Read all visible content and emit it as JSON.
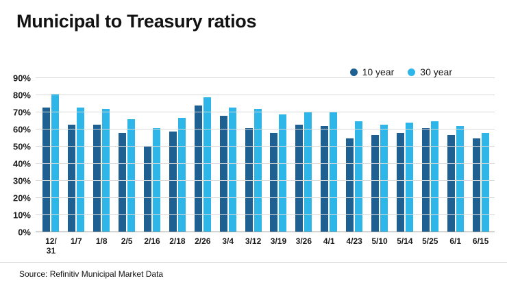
{
  "chart_data": {
    "type": "bar",
    "title": "Municipal to Treasury ratios",
    "source": "Source: Refinitiv Municipal Market Data",
    "categories": [
      "12/\n31",
      "1/7",
      "1/8",
      "2/5",
      "2/16",
      "2/18",
      "2/26",
      "3/4",
      "3/12",
      "3/19",
      "3/26",
      "4/1",
      "4/23",
      "5/10",
      "5/14",
      "5/25",
      "6/1",
      "6/15"
    ],
    "series": [
      {
        "name": "10 year",
        "color": "#1d6091",
        "values": [
          73,
          63,
          63,
          58,
          50,
          59,
          74,
          68,
          61,
          58,
          63,
          62,
          55,
          57,
          58,
          61,
          57,
          55
        ]
      },
      {
        "name": "30 year",
        "color": "#2eb6e8",
        "values": [
          81,
          73,
          72,
          66,
          61,
          67,
          79,
          73,
          72,
          69,
          70,
          70,
          65,
          63,
          64,
          65,
          62,
          58
        ]
      }
    ],
    "ylim": [
      0,
      90
    ],
    "ytick_step": 10,
    "ytick_suffix": "%",
    "grid": "horizontal",
    "legend_position": "top-right",
    "xlabel": "",
    "ylabel": ""
  }
}
